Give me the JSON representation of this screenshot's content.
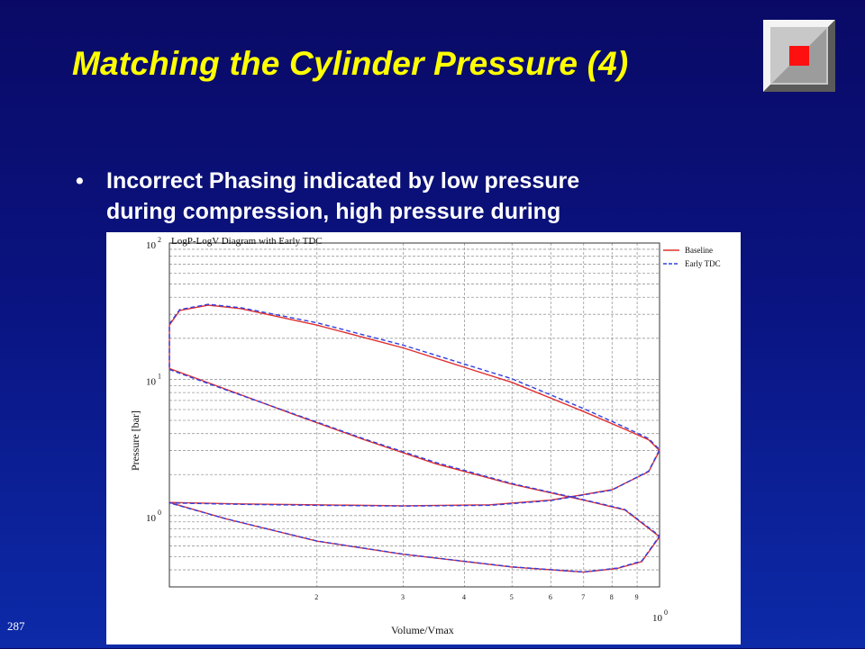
{
  "slide": {
    "title": "Matching the Cylinder Pressure (4)",
    "bullet": {
      "marker": "•",
      "lines": [
        "Incorrect Phasing indicated by low pressure",
        "during compression, high pressure during"
      ]
    },
    "slide_number": "287"
  },
  "icons": {
    "logo": "red-square-logo-icon"
  },
  "colors": {
    "title": "#ffff00",
    "bullet_text": "#ffffff",
    "background_top": "#0a0a66",
    "background_bottom": "#0d2aa8",
    "baseline_series": "#e03030",
    "early_tdc_series": "#3040e0"
  },
  "chart_data": {
    "type": "line",
    "title": "LogP-LogV Diagram with Early TDC",
    "xlabel": "Volume/Vmax",
    "ylabel": "Pressure [bar]",
    "x_scale": "log",
    "y_scale": "log",
    "xlim": [
      0.1,
      1
    ],
    "ylim": [
      0.3,
      100
    ],
    "grid": true,
    "legend_position": "top-right",
    "x_tick_labels": [
      {
        "value": 0.2,
        "label": "2"
      },
      {
        "value": 0.3,
        "label": "3"
      },
      {
        "value": 0.4,
        "label": "4"
      },
      {
        "value": 0.5,
        "label": "5"
      },
      {
        "value": 0.6,
        "label": "6"
      },
      {
        "value": 0.7,
        "label": "7"
      },
      {
        "value": 0.8,
        "label": "8"
      },
      {
        "value": 0.9,
        "label": "9"
      }
    ],
    "x_decade_label": {
      "base": "10",
      "exp": "0",
      "value": 1
    },
    "y_decade_labels": [
      {
        "base": "10",
        "exp": "2",
        "value": 100
      },
      {
        "base": "10",
        "exp": "1",
        "value": 10
      },
      {
        "base": "10",
        "exp": "0",
        "value": 1
      }
    ],
    "series": [
      {
        "name": "Baseline",
        "color": "#e03030",
        "dash": "solid",
        "points": [
          [
            0.1,
            12
          ],
          [
            0.13,
            8.5
          ],
          [
            0.18,
            5.5
          ],
          [
            0.25,
            3.6
          ],
          [
            0.35,
            2.4
          ],
          [
            0.5,
            1.7
          ],
          [
            0.7,
            1.3
          ],
          [
            0.85,
            1.1
          ],
          [
            1.0,
            0.7
          ],
          [
            0.92,
            0.46
          ],
          [
            0.82,
            0.41
          ],
          [
            0.7,
            0.385
          ],
          [
            0.5,
            0.42
          ],
          [
            0.3,
            0.52
          ],
          [
            0.2,
            0.65
          ],
          [
            0.13,
            0.95
          ],
          [
            0.1,
            1.25
          ],
          [
            0.14,
            1.22
          ],
          [
            0.2,
            1.2
          ],
          [
            0.3,
            1.18
          ],
          [
            0.45,
            1.2
          ],
          [
            0.6,
            1.3
          ],
          [
            0.8,
            1.55
          ],
          [
            0.95,
            2.1
          ],
          [
            1.0,
            3.0
          ],
          [
            0.95,
            3.6
          ],
          [
            0.85,
            4.3
          ],
          [
            0.7,
            5.8
          ],
          [
            0.5,
            9.5
          ],
          [
            0.3,
            17
          ],
          [
            0.2,
            25
          ],
          [
            0.14,
            33
          ],
          [
            0.12,
            35
          ],
          [
            0.105,
            32
          ],
          [
            0.1,
            25
          ],
          [
            0.1,
            12
          ]
        ]
      },
      {
        "name": "Early TDC",
        "color": "#3040e0",
        "dash": "dashed",
        "points": [
          [
            0.1,
            11.8
          ],
          [
            0.13,
            8.4
          ],
          [
            0.18,
            5.55
          ],
          [
            0.25,
            3.65
          ],
          [
            0.35,
            2.45
          ],
          [
            0.5,
            1.72
          ],
          [
            0.7,
            1.31
          ],
          [
            0.85,
            1.11
          ],
          [
            1.0,
            0.71
          ],
          [
            0.92,
            0.465
          ],
          [
            0.82,
            0.412
          ],
          [
            0.7,
            0.386
          ],
          [
            0.5,
            0.421
          ],
          [
            0.3,
            0.522
          ],
          [
            0.2,
            0.652
          ],
          [
            0.13,
            0.952
          ],
          [
            0.1,
            1.24
          ],
          [
            0.14,
            1.21
          ],
          [
            0.2,
            1.19
          ],
          [
            0.3,
            1.175
          ],
          [
            0.45,
            1.19
          ],
          [
            0.6,
            1.29
          ],
          [
            0.8,
            1.54
          ],
          [
            0.95,
            2.12
          ],
          [
            1.0,
            3.05
          ],
          [
            0.95,
            3.68
          ],
          [
            0.85,
            4.45
          ],
          [
            0.7,
            6.1
          ],
          [
            0.5,
            10.1
          ],
          [
            0.3,
            17.8
          ],
          [
            0.2,
            26
          ],
          [
            0.14,
            33.5
          ],
          [
            0.12,
            35.5
          ],
          [
            0.105,
            32.5
          ],
          [
            0.1,
            25.5
          ],
          [
            0.1,
            11.8
          ]
        ]
      }
    ]
  }
}
